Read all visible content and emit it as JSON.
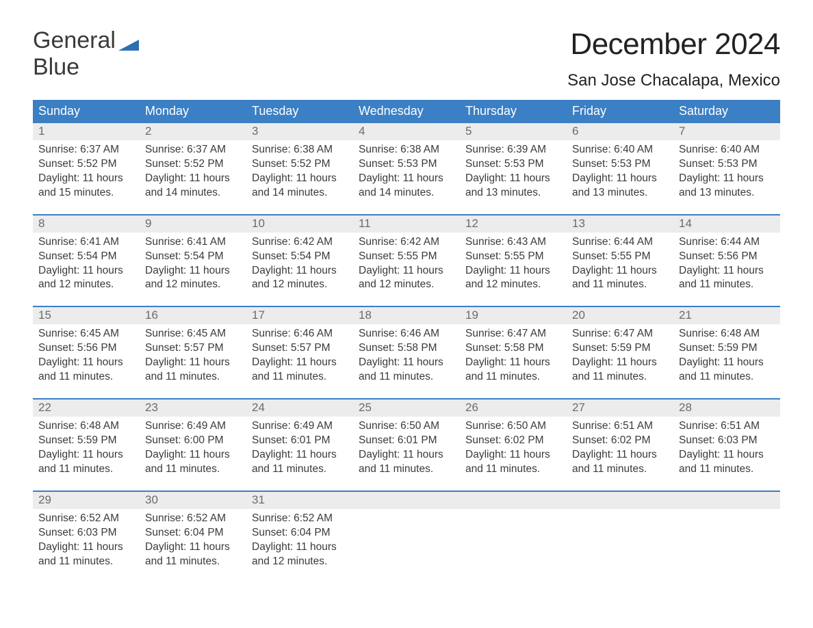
{
  "brand": {
    "line1": "General",
    "line2": "Blue"
  },
  "title": "December 2024",
  "location": "San Jose Chacalapa, Mexico",
  "colors": {
    "header_bg": "#3b7fc4",
    "header_text": "#ffffff",
    "daynum_bg": "#ececec",
    "daynum_text": "#6b6b6b",
    "body_text": "#3a3a3a",
    "rule": "#3b7fc4",
    "brand_blue": "#2c6fb5"
  },
  "day_names": [
    "Sunday",
    "Monday",
    "Tuesday",
    "Wednesday",
    "Thursday",
    "Friday",
    "Saturday"
  ],
  "weeks": [
    [
      {
        "num": "1",
        "sunrise": "6:37 AM",
        "sunset": "5:52 PM",
        "daylight": "11 hours and 15 minutes."
      },
      {
        "num": "2",
        "sunrise": "6:37 AM",
        "sunset": "5:52 PM",
        "daylight": "11 hours and 14 minutes."
      },
      {
        "num": "3",
        "sunrise": "6:38 AM",
        "sunset": "5:52 PM",
        "daylight": "11 hours and 14 minutes."
      },
      {
        "num": "4",
        "sunrise": "6:38 AM",
        "sunset": "5:53 PM",
        "daylight": "11 hours and 14 minutes."
      },
      {
        "num": "5",
        "sunrise": "6:39 AM",
        "sunset": "5:53 PM",
        "daylight": "11 hours and 13 minutes."
      },
      {
        "num": "6",
        "sunrise": "6:40 AM",
        "sunset": "5:53 PM",
        "daylight": "11 hours and 13 minutes."
      },
      {
        "num": "7",
        "sunrise": "6:40 AM",
        "sunset": "5:53 PM",
        "daylight": "11 hours and 13 minutes."
      }
    ],
    [
      {
        "num": "8",
        "sunrise": "6:41 AM",
        "sunset": "5:54 PM",
        "daylight": "11 hours and 12 minutes."
      },
      {
        "num": "9",
        "sunrise": "6:41 AM",
        "sunset": "5:54 PM",
        "daylight": "11 hours and 12 minutes."
      },
      {
        "num": "10",
        "sunrise": "6:42 AM",
        "sunset": "5:54 PM",
        "daylight": "11 hours and 12 minutes."
      },
      {
        "num": "11",
        "sunrise": "6:42 AM",
        "sunset": "5:55 PM",
        "daylight": "11 hours and 12 minutes."
      },
      {
        "num": "12",
        "sunrise": "6:43 AM",
        "sunset": "5:55 PM",
        "daylight": "11 hours and 12 minutes."
      },
      {
        "num": "13",
        "sunrise": "6:44 AM",
        "sunset": "5:55 PM",
        "daylight": "11 hours and 11 minutes."
      },
      {
        "num": "14",
        "sunrise": "6:44 AM",
        "sunset": "5:56 PM",
        "daylight": "11 hours and 11 minutes."
      }
    ],
    [
      {
        "num": "15",
        "sunrise": "6:45 AM",
        "sunset": "5:56 PM",
        "daylight": "11 hours and 11 minutes."
      },
      {
        "num": "16",
        "sunrise": "6:45 AM",
        "sunset": "5:57 PM",
        "daylight": "11 hours and 11 minutes."
      },
      {
        "num": "17",
        "sunrise": "6:46 AM",
        "sunset": "5:57 PM",
        "daylight": "11 hours and 11 minutes."
      },
      {
        "num": "18",
        "sunrise": "6:46 AM",
        "sunset": "5:58 PM",
        "daylight": "11 hours and 11 minutes."
      },
      {
        "num": "19",
        "sunrise": "6:47 AM",
        "sunset": "5:58 PM",
        "daylight": "11 hours and 11 minutes."
      },
      {
        "num": "20",
        "sunrise": "6:47 AM",
        "sunset": "5:59 PM",
        "daylight": "11 hours and 11 minutes."
      },
      {
        "num": "21",
        "sunrise": "6:48 AM",
        "sunset": "5:59 PM",
        "daylight": "11 hours and 11 minutes."
      }
    ],
    [
      {
        "num": "22",
        "sunrise": "6:48 AM",
        "sunset": "5:59 PM",
        "daylight": "11 hours and 11 minutes."
      },
      {
        "num": "23",
        "sunrise": "6:49 AM",
        "sunset": "6:00 PM",
        "daylight": "11 hours and 11 minutes."
      },
      {
        "num": "24",
        "sunrise": "6:49 AM",
        "sunset": "6:01 PM",
        "daylight": "11 hours and 11 minutes."
      },
      {
        "num": "25",
        "sunrise": "6:50 AM",
        "sunset": "6:01 PM",
        "daylight": "11 hours and 11 minutes."
      },
      {
        "num": "26",
        "sunrise": "6:50 AM",
        "sunset": "6:02 PM",
        "daylight": "11 hours and 11 minutes."
      },
      {
        "num": "27",
        "sunrise": "6:51 AM",
        "sunset": "6:02 PM",
        "daylight": "11 hours and 11 minutes."
      },
      {
        "num": "28",
        "sunrise": "6:51 AM",
        "sunset": "6:03 PM",
        "daylight": "11 hours and 11 minutes."
      }
    ],
    [
      {
        "num": "29",
        "sunrise": "6:52 AM",
        "sunset": "6:03 PM",
        "daylight": "11 hours and 11 minutes."
      },
      {
        "num": "30",
        "sunrise": "6:52 AM",
        "sunset": "6:04 PM",
        "daylight": "11 hours and 11 minutes."
      },
      {
        "num": "31",
        "sunrise": "6:52 AM",
        "sunset": "6:04 PM",
        "daylight": "11 hours and 12 minutes."
      },
      null,
      null,
      null,
      null
    ]
  ],
  "labels": {
    "sunrise_prefix": "Sunrise: ",
    "sunset_prefix": "Sunset: ",
    "daylight_prefix": "Daylight: "
  }
}
